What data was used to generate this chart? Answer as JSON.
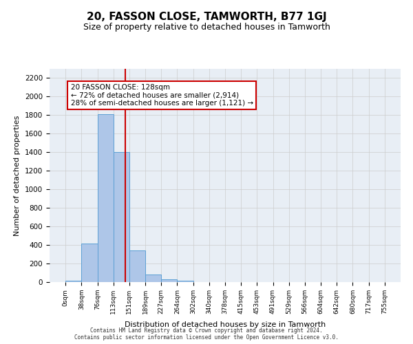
{
  "title": "20, FASSON CLOSE, TAMWORTH, B77 1GJ",
  "subtitle": "Size of property relative to detached houses in Tamworth",
  "xlabel": "Distribution of detached houses by size in Tamworth",
  "ylabel": "Number of detached properties",
  "bin_labels": [
    "0sqm",
    "38sqm",
    "76sqm",
    "113sqm",
    "151sqm",
    "189sqm",
    "227sqm",
    "264sqm",
    "302sqm",
    "340sqm",
    "378sqm",
    "415sqm",
    "453sqm",
    "491sqm",
    "529sqm",
    "566sqm",
    "604sqm",
    "642sqm",
    "680sqm",
    "717sqm",
    "755sqm"
  ],
  "bar_heights": [
    15,
    415,
    1810,
    1400,
    345,
    80,
    30,
    18,
    0,
    0,
    0,
    0,
    0,
    0,
    0,
    0,
    0,
    0,
    0,
    0
  ],
  "bar_color": "#aec6e8",
  "bar_edge_color": "#5a9fd4",
  "property_size": 128,
  "property_line_x": 3.76,
  "annotation_text": "20 FASSON CLOSE: 128sqm\n← 72% of detached houses are smaller (2,914)\n28% of semi-detached houses are larger (1,121) →",
  "annotation_box_color": "#ffffff",
  "annotation_box_edge": "#cc0000",
  "vline_color": "#cc0000",
  "ylim": [
    0,
    2300
  ],
  "yticks": [
    0,
    200,
    400,
    600,
    800,
    1000,
    1200,
    1400,
    1600,
    1800,
    2000,
    2200
  ],
  "grid_color": "#cccccc",
  "bg_color": "#e8eef5",
  "footer_line1": "Contains HM Land Registry data © Crown copyright and database right 2024.",
  "footer_line2": "Contains public sector information licensed under the Open Government Licence v3.0."
}
